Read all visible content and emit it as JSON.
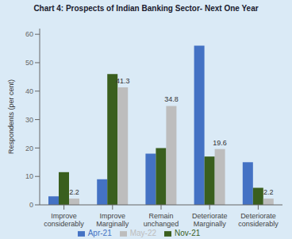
{
  "chart_data": {
    "type": "bar",
    "title": "Chart 4: Prospects of Indian Banking Sector- Next One Year",
    "categories": [
      "Improve\nconsiderably",
      "Improve\nMarginally",
      "Remain\nunchanged",
      "Deteriorate\nMarginally",
      "Deteriorate\nconsiderably"
    ],
    "series": [
      {
        "name": "Apr-21",
        "color": "#4472C4",
        "values": [
          3.0,
          9.0,
          18.0,
          56.0,
          15.0
        ]
      },
      {
        "name": "Nov-21",
        "color": "#3A5F1E",
        "values": [
          11.5,
          46.0,
          20.0,
          17.0,
          6.0
        ]
      },
      {
        "name": "May-22",
        "color": "#BDBDBD",
        "values": [
          2.2,
          41.3,
          34.8,
          19.6,
          2.2
        ],
        "data_labels": true
      }
    ],
    "ylabel": "Respondents (per cent)",
    "ylim": [
      0,
      62
    ],
    "yticks": [
      0,
      10,
      20,
      30,
      40,
      50,
      60
    ],
    "grid": false,
    "legend": "bottom"
  }
}
